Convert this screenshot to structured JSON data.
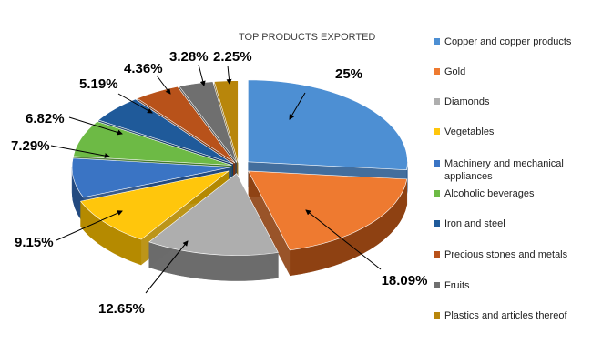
{
  "chart_data": {
    "type": "pie",
    "style": "exploded-3d",
    "title": "TOP PRODUCTS EXPORTED",
    "legend_position": "right",
    "slices": [
      {
        "name": "Copper and copper products",
        "value": 25,
        "label": "25%",
        "color": "#4d8fd3",
        "side_color": "#2f5e92"
      },
      {
        "name": "Gold",
        "value": 18.09,
        "label": "18.09%",
        "color": "#ee7a30",
        "side_color": "#8e4112"
      },
      {
        "name": "Diamonds",
        "value": 12.65,
        "label": "12.65%",
        "color": "#aeaeae",
        "side_color": "#6c6c6c"
      },
      {
        "name": "Vegetables",
        "value": 9.15,
        "label": "9.15%",
        "color": "#ffc60c",
        "side_color": "#b58a00"
      },
      {
        "name": "Machinery and mechanical appliances",
        "value": 7.29,
        "label": "7.29%",
        "color": "#3a74c4",
        "side_color": "#234a80"
      },
      {
        "name": "Alcoholic beverages",
        "value": 6.82,
        "label": "6.82%",
        "color": "#6dba45",
        "side_color": "#41772a"
      },
      {
        "name": "Iron and steel",
        "value": 5.19,
        "label": "5.19%",
        "color": "#1f5a9a",
        "side_color": "#143c66"
      },
      {
        "name": "Precious stones and metals",
        "value": 4.36,
        "label": "4.36%",
        "color": "#b8521a",
        "side_color": "#7a3410"
      },
      {
        "name": "Fruits",
        "value": 3.28,
        "label": "3.28%",
        "color": "#6f6f6f",
        "side_color": "#444444"
      },
      {
        "name": "Plastics and articles thereof",
        "value": 2.25,
        "label": "2.25%",
        "color": "#b8860b",
        "side_color": "#7a5906"
      }
    ]
  }
}
